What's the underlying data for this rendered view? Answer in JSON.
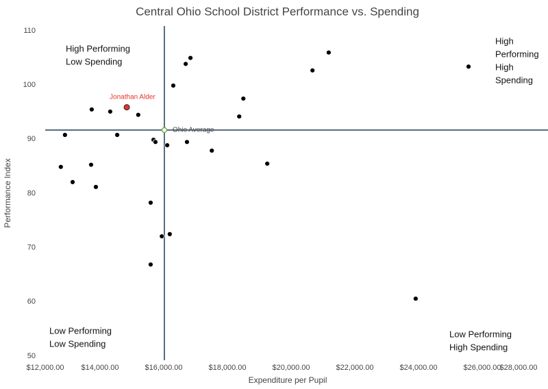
{
  "chart_data": {
    "type": "scatter",
    "title": "Central Ohio School District Performance vs. Spending",
    "x_label": "Expenditure per Pupil",
    "y_label": "Performance Index",
    "xlim": [
      12000,
      28000
    ],
    "ylim": [
      50,
      110
    ],
    "xticks": [
      {
        "value": 12000,
        "label": "$12,000.00"
      },
      {
        "value": 14000,
        "label": "$14,000.00"
      },
      {
        "value": 16000,
        "label": "$16,000.00"
      },
      {
        "value": 18000,
        "label": "$18,000.00"
      },
      {
        "value": 20000,
        "label": "$20,000.00"
      },
      {
        "value": 22000,
        "label": "$22,000.00"
      },
      {
        "value": 24000,
        "label": "$24,000.00"
      },
      {
        "value": 26000,
        "label": "$26,000.00"
      },
      {
        "value": 28000,
        "label": "$28,000.00"
      }
    ],
    "yticks": [
      50,
      60,
      70,
      80,
      90,
      100,
      110
    ],
    "color": "#000000",
    "x": [
      16840,
      16690,
      21180,
      20670,
      25570,
      16300,
      18500,
      13740,
      14320,
      15200,
      18370,
      12900,
      14540,
      15680,
      15740,
      16110,
      16730,
      17510,
      19250,
      12770,
      13720,
      13140,
      13870,
      15590,
      15940,
      16190,
      15590,
      23910
    ],
    "y": [
      105,
      103.9,
      106,
      102.7,
      103.4,
      99.9,
      97.5,
      95.5,
      95.1,
      94.5,
      94.2,
      90.8,
      90.8,
      89.9,
      89.5,
      88.9,
      89.5,
      87.9,
      85.5,
      84.9,
      85.3,
      82.1,
      81.2,
      78.3,
      72.1,
      72.5,
      66.9,
      60.6
    ],
    "highlight": {
      "label": "Jonathan Alder",
      "x": 14840,
      "y": 95.9,
      "color": "#e8322d"
    },
    "average": {
      "label": "Ohio Average",
      "x": 16020,
      "y": 91.7,
      "line_color": "#1f3b57",
      "color": "#70ad47"
    },
    "quadrant_labels": {
      "top_left": [
        "High Performing",
        "Low Spending"
      ],
      "top_right": [
        "High",
        "Performing",
        "High",
        "Spending"
      ],
      "bottom_left": [
        "Low Performing",
        "Low Spending"
      ],
      "bottom_right": [
        "Low Performing",
        "High Spending"
      ]
    }
  }
}
